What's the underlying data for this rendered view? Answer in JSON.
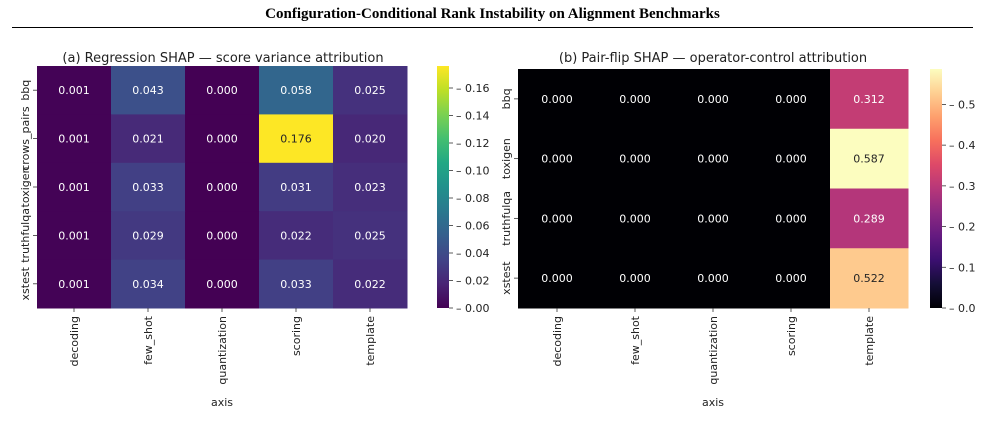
{
  "page": {
    "title": "Configuration-Conditional Rank Instability on Alignment Benchmarks"
  },
  "chart_data": [
    {
      "type": "heatmap",
      "title": "(a) Regression SHAP — score variance attribution",
      "xlabel": "axis",
      "ylabel": "",
      "colormap": "viridis",
      "columns": [
        "decoding",
        "few_shot",
        "quantization",
        "scoring",
        "template"
      ],
      "rows": [
        "bbq",
        "crows_pairs",
        "toxigen",
        "truthfulqa",
        "xstest"
      ],
      "values": [
        [
          0.001,
          0.043,
          0.0,
          0.058,
          0.025
        ],
        [
          0.001,
          0.021,
          0.0,
          0.176,
          0.02
        ],
        [
          0.001,
          0.033,
          0.0,
          0.031,
          0.023
        ],
        [
          0.001,
          0.029,
          0.0,
          0.022,
          0.025
        ],
        [
          0.001,
          0.034,
          0.0,
          0.033,
          0.022
        ]
      ],
      "value_labels": [
        [
          "0.001",
          "0.043",
          "0.000",
          "0.058",
          "0.025"
        ],
        [
          "0.001",
          "0.021",
          "0.000",
          "0.176",
          "0.020"
        ],
        [
          "0.001",
          "0.033",
          "0.000",
          "0.031",
          "0.023"
        ],
        [
          "0.001",
          "0.029",
          "0.000",
          "0.022",
          "0.025"
        ],
        [
          "0.001",
          "0.034",
          "0.000",
          "0.033",
          "0.022"
        ]
      ],
      "vmin": 0.0,
      "vmax": 0.176,
      "colorbar_ticks": [
        "0.00",
        "0.02",
        "0.04",
        "0.06",
        "0.08",
        "0.10",
        "0.12",
        "0.14",
        "0.16"
      ],
      "colorbar_tick_values": [
        0.0,
        0.02,
        0.04,
        0.06,
        0.08,
        0.1,
        0.12,
        0.14,
        0.16
      ]
    },
    {
      "type": "heatmap",
      "title": "(b) Pair-flip SHAP — operator-control attribution",
      "xlabel": "axis",
      "ylabel": "",
      "colormap": "magma",
      "columns": [
        "decoding",
        "few_shot",
        "quantization",
        "scoring",
        "template"
      ],
      "rows": [
        "bbq",
        "toxigen",
        "truthfulqa",
        "xstest"
      ],
      "values": [
        [
          0.0,
          0.0,
          0.0,
          0.0,
          0.312
        ],
        [
          0.0,
          0.0,
          0.0,
          0.0,
          0.587
        ],
        [
          0.0,
          0.0,
          0.0,
          0.0,
          0.289
        ],
        [
          0.0,
          0.0,
          0.0,
          0.0,
          0.522
        ]
      ],
      "value_labels": [
        [
          "0.000",
          "0.000",
          "0.000",
          "0.000",
          "0.312"
        ],
        [
          "0.000",
          "0.000",
          "0.000",
          "0.000",
          "0.587"
        ],
        [
          "0.000",
          "0.000",
          "0.000",
          "0.000",
          "0.289"
        ],
        [
          "0.000",
          "0.000",
          "0.000",
          "0.000",
          "0.522"
        ]
      ],
      "vmin": 0.0,
      "vmax": 0.587,
      "colorbar_ticks": [
        "0.0",
        "0.1",
        "0.2",
        "0.3",
        "0.4",
        "0.5"
      ],
      "colorbar_tick_values": [
        0.0,
        0.1,
        0.2,
        0.3,
        0.4,
        0.5
      ]
    }
  ]
}
